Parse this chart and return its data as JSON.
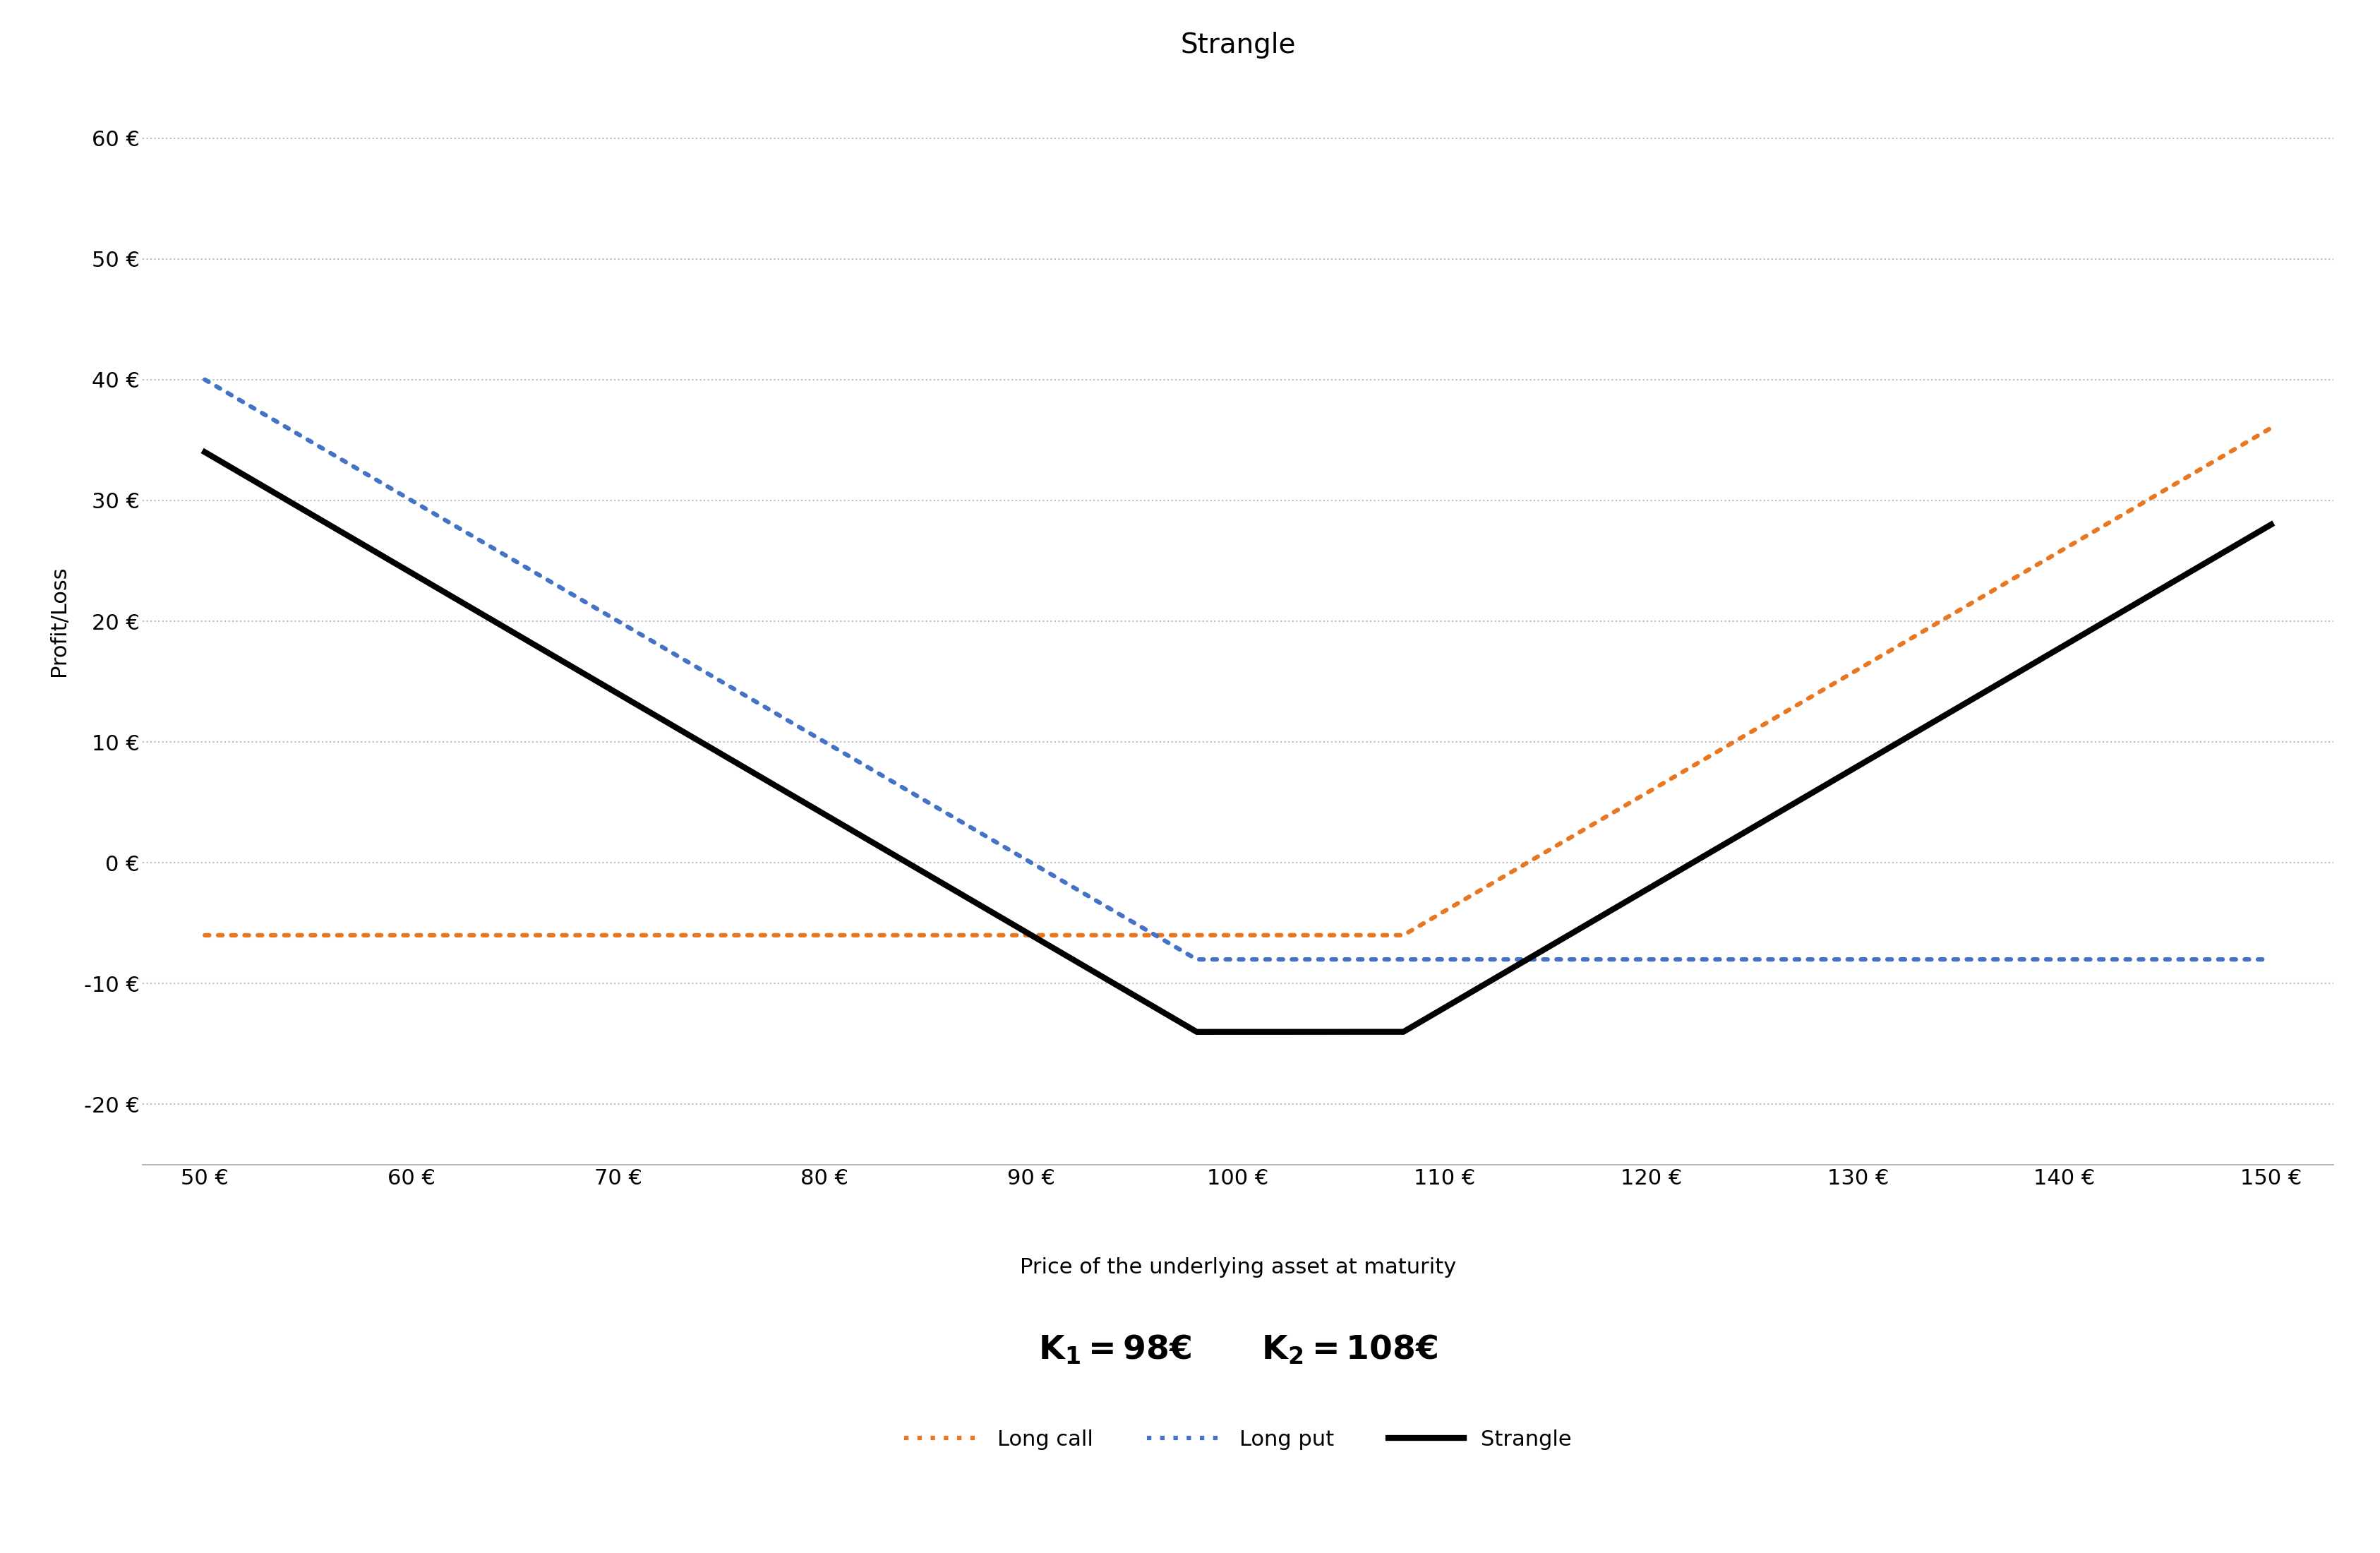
{
  "title": "Strangle",
  "xlabel": "Price of the underlying asset at maturity",
  "ylabel": "Profit/Loss",
  "K1": 98,
  "K2": 108,
  "call_premium": 6,
  "put_premium": 8,
  "S_min": 50,
  "S_max": 150,
  "x_ticks": [
    50,
    60,
    70,
    80,
    90,
    100,
    110,
    120,
    130,
    140,
    150
  ],
  "y_ticks": [
    -20,
    -10,
    0,
    10,
    20,
    30,
    40,
    50,
    60
  ],
  "ylim": [
    -25,
    65
  ],
  "xlim": [
    47,
    153
  ],
  "long_call_color": "#E87722",
  "long_put_color": "#4472C4",
  "strangle_color": "#000000",
  "bg_color": "#FFFFFF",
  "grid_color": "#BBBBBB",
  "legend_long_call": "Long call",
  "legend_long_put": "Long put",
  "legend_strangle": "Strangle",
  "title_fontsize": 28,
  "label_fontsize": 22,
  "tick_fontsize": 22,
  "legend_fontsize": 22,
  "annotation_fontsize": 34,
  "linewidth_dotted": 4.5,
  "linewidth_solid": 6.0,
  "dotted_markersize": 3
}
